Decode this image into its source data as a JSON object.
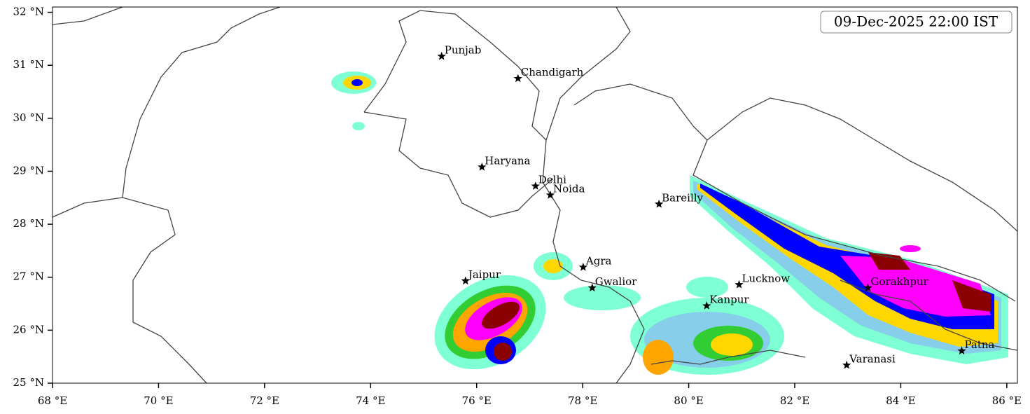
{
  "header": {
    "timestamp": "09-Dec-2025 22:00 IST"
  },
  "map": {
    "xlim": [
      68,
      86.2
    ],
    "ylim": [
      25,
      32.1
    ],
    "xticks": [
      {
        "value": 68,
        "label": "68 °E"
      },
      {
        "value": 70,
        "label": "70 °E"
      },
      {
        "value": 72,
        "label": "72 °E"
      },
      {
        "value": 74,
        "label": "74 °E"
      },
      {
        "value": 76,
        "label": "76 °E"
      },
      {
        "value": 78,
        "label": "78 °E"
      },
      {
        "value": 80,
        "label": "80 °E"
      },
      {
        "value": 82,
        "label": "82 °E"
      },
      {
        "value": 84,
        "label": "84 °E"
      },
      {
        "value": 86,
        "label": "86 °E"
      }
    ],
    "yticks": [
      {
        "value": 25,
        "label": "25 °N"
      },
      {
        "value": 26,
        "label": "26 °N"
      },
      {
        "value": 27,
        "label": "27 °N"
      },
      {
        "value": 28,
        "label": "28 °N"
      },
      {
        "value": 29,
        "label": "29 °N"
      },
      {
        "value": 30,
        "label": "30 °N"
      },
      {
        "value": 31,
        "label": "31 °N"
      },
      {
        "value": 32,
        "label": "32 °N"
      }
    ],
    "cities": [
      {
        "name": "Punjab",
        "lon": 75.34,
        "lat": 31.17
      },
      {
        "name": "Chandigarh",
        "lon": 76.78,
        "lat": 30.75
      },
      {
        "name": "Haryana",
        "lon": 76.1,
        "lat": 29.08
      },
      {
        "name": "Delhi",
        "lon": 77.11,
        "lat": 28.72
      },
      {
        "name": "Noida",
        "lon": 77.39,
        "lat": 28.55
      },
      {
        "name": "Bareilly",
        "lon": 79.44,
        "lat": 28.38
      },
      {
        "name": "Agra",
        "lon": 78.01,
        "lat": 27.19
      },
      {
        "name": "Jaipur",
        "lon": 75.79,
        "lat": 26.93
      },
      {
        "name": "Gwalior",
        "lon": 78.18,
        "lat": 26.8
      },
      {
        "name": "Lucknow",
        "lon": 80.95,
        "lat": 26.86
      },
      {
        "name": "Kanpur",
        "lon": 80.34,
        "lat": 26.46
      },
      {
        "name": "Gorakhpur",
        "lon": 83.38,
        "lat": 26.8
      },
      {
        "name": "Varanasi",
        "lon": 82.98,
        "lat": 25.34
      },
      {
        "name": "Patna",
        "lon": 85.15,
        "lat": 25.61
      }
    ]
  }
}
